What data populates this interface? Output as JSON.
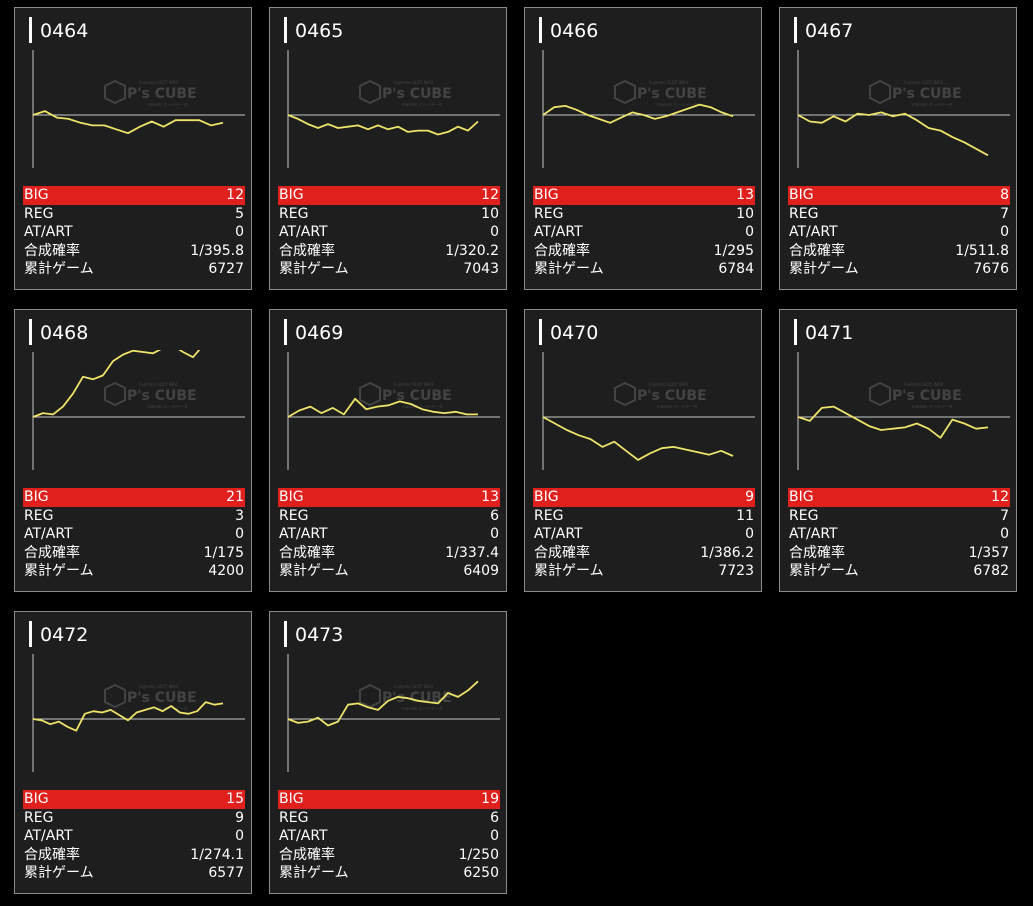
{
  "labels": {
    "big": "BIG",
    "reg": "REG",
    "at": "AT/ART",
    "prob": "合成確率",
    "games": "累計ゲーム"
  },
  "watermark": {
    "brand": "P's CUBE",
    "small_top": "Fujimino SLOT INFO",
    "small_bottom": "maiseki ホールデータ"
  },
  "colors": {
    "card_bg": "#1e1e1e",
    "card_border": "#8a8a8a",
    "big_bar": "#e0201d",
    "line": "#ece46a",
    "axis": "#c8c8c8"
  },
  "machines": [
    {
      "id": "0464",
      "big": "12",
      "reg": "5",
      "at": "0",
      "prob": "1/395.8",
      "games": "6727",
      "trend": [
        0,
        3,
        -2,
        -3,
        -6,
        -8,
        -8,
        -11,
        -14,
        -9,
        -5,
        -9,
        -4,
        -4,
        -4,
        -8,
        -6
      ]
    },
    {
      "id": "0465",
      "big": "12",
      "reg": "10",
      "at": "0",
      "prob": "1/320.2",
      "games": "7043",
      "trend": [
        0,
        -3,
        -7,
        -10,
        -7,
        -10,
        -9,
        -8,
        -11,
        -8,
        -11,
        -9,
        -13,
        -12,
        -12,
        -15,
        -13,
        -9,
        -12,
        -5
      ]
    },
    {
      "id": "0466",
      "big": "13",
      "reg": "10",
      "at": "0",
      "prob": "1/295",
      "games": "6784",
      "trend": [
        0,
        6,
        7,
        4,
        0,
        -3,
        -6,
        -2,
        2,
        0,
        -3,
        -1,
        2,
        5,
        8,
        6,
        2,
        -1
      ]
    },
    {
      "id": "0467",
      "big": "8",
      "reg": "7",
      "at": "0",
      "prob": "1/511.8",
      "games": "7676",
      "trend": [
        0,
        -5,
        -6,
        -1,
        -5,
        1,
        0,
        2,
        -1,
        1,
        -4,
        -10,
        -12,
        -17,
        -21,
        -26,
        -31
      ]
    },
    {
      "id": "0468",
      "big": "21",
      "reg": "3",
      "at": "0",
      "prob": "1/175",
      "games": "4200",
      "trend": [
        0,
        3,
        2,
        8,
        18,
        31,
        29,
        32,
        43,
        48,
        51,
        50,
        49,
        53,
        55,
        50,
        46,
        55,
        57,
        54
      ]
    },
    {
      "id": "0469",
      "big": "13",
      "reg": "6",
      "at": "0",
      "prob": "1/337.4",
      "games": "6409",
      "trend": [
        0,
        5,
        8,
        3,
        7,
        2,
        14,
        6,
        8,
        9,
        12,
        10,
        6,
        4,
        3,
        4,
        2,
        2
      ]
    },
    {
      "id": "0470",
      "big": "9",
      "reg": "11",
      "at": "0",
      "prob": "1/386.2",
      "games": "7723",
      "trend": [
        0,
        -5,
        -10,
        -14,
        -17,
        -23,
        -19,
        -26,
        -33,
        -28,
        -24,
        -23,
        -25,
        -27,
        -29,
        -26,
        -30
      ]
    },
    {
      "id": "0471",
      "big": "12",
      "reg": "7",
      "at": "0",
      "prob": "1/357",
      "games": "6782",
      "trend": [
        0,
        -3,
        7,
        8,
        3,
        -2,
        -7,
        -10,
        -9,
        -8,
        -5,
        -9,
        -16,
        -2,
        -5,
        -9,
        -8
      ]
    },
    {
      "id": "0472",
      "big": "15",
      "reg": "9",
      "at": "0",
      "prob": "1/274.1",
      "games": "6577",
      "trend": [
        0,
        -1,
        -4,
        -2,
        -6,
        -9,
        4,
        6,
        5,
        7,
        3,
        -1,
        5,
        7,
        9,
        6,
        10,
        5,
        4,
        6,
        13,
        11,
        12
      ]
    },
    {
      "id": "0473",
      "big": "19",
      "reg": "6",
      "at": "0",
      "prob": "1/250",
      "games": "6250",
      "trend": [
        0,
        -3,
        -2,
        1,
        -5,
        -2,
        11,
        12,
        9,
        7,
        14,
        17,
        16,
        14,
        13,
        12,
        20,
        17,
        22,
        29
      ]
    }
  ]
}
